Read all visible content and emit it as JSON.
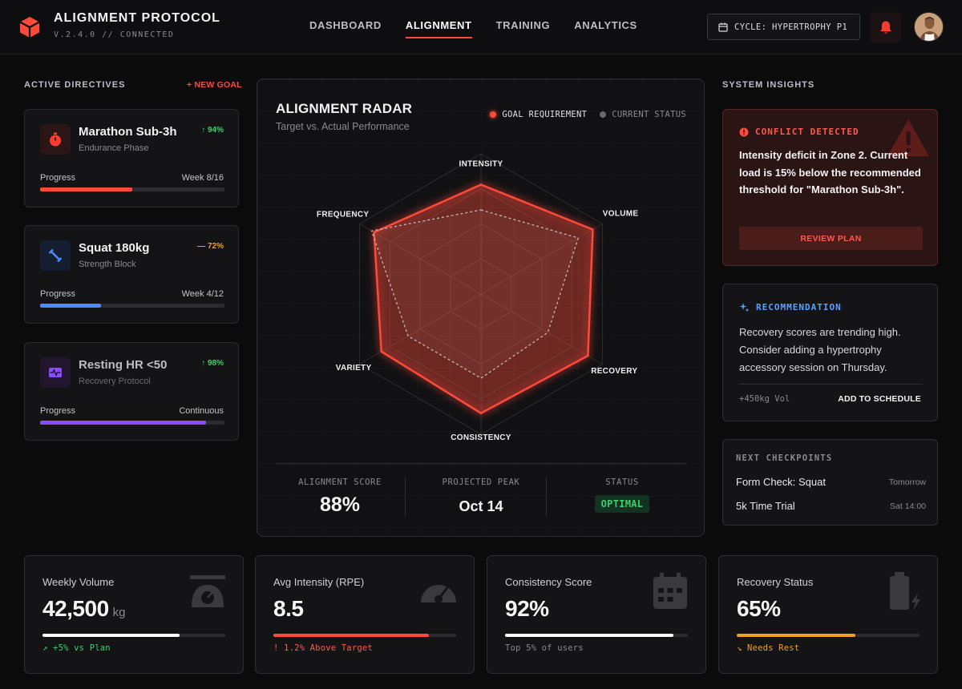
{
  "header": {
    "title": "ALIGNMENT PROTOCOL",
    "subtitle": "V.2.4.0 // CONNECTED",
    "nav": [
      {
        "label": "DASHBOARD",
        "active": false
      },
      {
        "label": "ALIGNMENT",
        "active": true
      },
      {
        "label": "TRAINING",
        "active": false
      },
      {
        "label": "ANALYTICS",
        "active": false
      }
    ],
    "cycle_label": "CYCLE: HYPERTROPHY P1"
  },
  "directives": {
    "heading": "ACTIVE DIRECTIVES",
    "new_goal_label": "+ NEW GOAL",
    "goals": [
      {
        "title": "Marathon Sub-3h",
        "subtitle": "Endurance Phase",
        "trend": "↑ 94%",
        "progress_label": "Progress",
        "progress_right": "Week 8/16",
        "progress": 0.5,
        "color": "#ff4a3a",
        "icon": "stopwatch-icon"
      },
      {
        "title": "Squat 180kg",
        "subtitle": "Strength Block",
        "trend": "— 72%",
        "progress_label": "Progress",
        "progress_right": "Week 4/12",
        "progress": 0.33,
        "color": "#4a8cff",
        "icon": "dumbbell-icon"
      },
      {
        "title": "Resting HR <50",
        "subtitle": "Recovery Protocol",
        "trend": "↑ 98%",
        "progress_label": "Progress",
        "progress_right": "Continuous",
        "progress": 0.9,
        "color": "#8a4cff",
        "icon": "heart-rate-icon"
      }
    ]
  },
  "radar": {
    "title": "ALIGNMENT RADAR",
    "subtitle": "Target vs. Actual Performance",
    "legend_goal": "GOAL REQUIREMENT",
    "legend_current": "CURRENT STATUS",
    "axes": [
      "INTENSITY",
      "VOLUME",
      "RECOVERY",
      "CONSISTENCY",
      "VARIETY",
      "FREQUENCY"
    ],
    "goal_values": [
      0.78,
      0.92,
      0.88,
      0.85,
      0.82,
      0.88
    ],
    "current_values": [
      0.6,
      0.8,
      0.55,
      0.6,
      0.6,
      0.9
    ],
    "colors": {
      "goal": "#ff4a3a",
      "current": "#bbbbbb"
    },
    "stats": {
      "alignment_label": "ALIGNMENT SCORE",
      "alignment_value": "88%",
      "peak_label": "PROJECTED PEAK",
      "peak_value": "Oct 14",
      "status_label": "STATUS",
      "status_value": "OPTIMAL"
    }
  },
  "insights": {
    "heading": "SYSTEM INSIGHTS",
    "conflict": {
      "heading": "CONFLICT DETECTED",
      "text": "Intensity deficit in Zone 2. Current load is 15% below the recommended threshold for \"Marathon Sub-3h\".",
      "button": "REVIEW PLAN"
    },
    "recommendation": {
      "heading": "RECOMMENDATION",
      "text": "Recovery scores are trending high. Consider adding a hypertrophy accessory session on Thursday.",
      "volume": "+450kg Vol",
      "action": "ADD TO SCHEDULE"
    },
    "checkpoints": {
      "heading": "NEXT CHECKPOINTS",
      "items": [
        {
          "name": "Form Check: Squat",
          "time": "Tomorrow"
        },
        {
          "name": "5k Time Trial",
          "time": "Sat 14:00"
        }
      ]
    }
  },
  "metrics": [
    {
      "title": "Weekly Volume",
      "value": "42,500",
      "unit": "kg",
      "progress": 0.75,
      "bar_color": "#ffffff",
      "foot": "↗ +5% vs Plan",
      "foot_color": "#3ecf6a",
      "icon": "scale-icon"
    },
    {
      "title": "Avg Intensity (RPE)",
      "value": "8.5",
      "unit": "",
      "progress": 0.85,
      "bar_color": "#ff4a3a",
      "foot": "! 1.2% Above Target",
      "foot_color": "#ff5a4a",
      "icon": "gauge-icon"
    },
    {
      "title": "Consistency Score",
      "value": "92%",
      "unit": "",
      "progress": 0.92,
      "bar_color": "#ffffff",
      "foot": "Top 5% of users",
      "foot_color": "#8a8a8e",
      "icon": "calendar-icon"
    },
    {
      "title": "Recovery Status",
      "value": "65%",
      "unit": "",
      "progress": 0.65,
      "bar_color": "#f0a020",
      "foot": "↘ Needs Rest",
      "foot_color": "#f0a020",
      "icon": "battery-icon"
    }
  ]
}
